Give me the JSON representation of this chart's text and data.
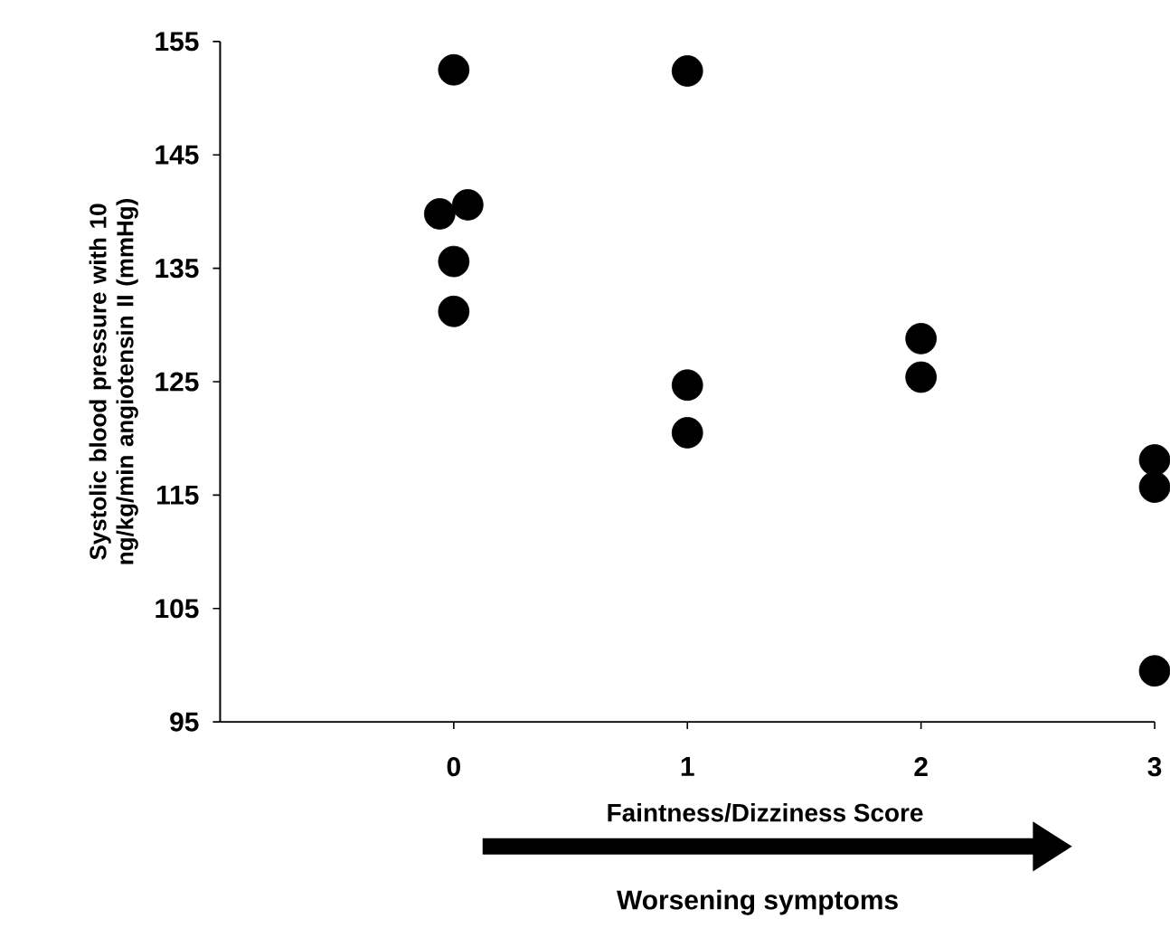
{
  "chart_data": {
    "type": "scatter",
    "xlabel": "Faintness/Dizziness Score",
    "ylabel": "Systolic blood pressure with 10 ng/kg/min angiotensin II (mmHg)",
    "annotations": [
      "Worsening symptoms"
    ],
    "series": [
      {
        "color": "#000000",
        "x": [
          0,
          -0.06,
          0.06,
          0,
          0,
          1,
          1,
          1,
          2,
          2,
          3,
          3,
          3
        ],
        "values": [
          152.5,
          139.8,
          140.6,
          135.6,
          131.2,
          152.4,
          124.7,
          120.5,
          128.8,
          125.4,
          118.1,
          115.7,
          99.5
        ]
      }
    ],
    "xlim": [
      -1,
      3
    ],
    "ylim": [
      95,
      155
    ],
    "xticks": [
      0,
      1,
      2,
      3
    ],
    "yticks": [
      95,
      105,
      115,
      125,
      135,
      145,
      155
    ],
    "marker": "circle",
    "grid": false
  }
}
